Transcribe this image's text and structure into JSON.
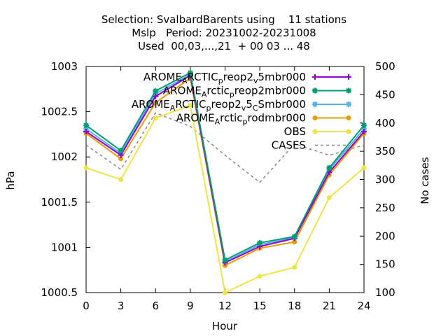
{
  "chart_data": {
    "type": "line",
    "title_lines": [
      "Selection: SvalbardBarents using    11 stations",
      "Mslp   Period: 20231002-20231008",
      "Used  00,03,...,21  + 00 03 ... 48"
    ],
    "xlabel": "Hour",
    "ylabel": "hPa",
    "y2label": "No cases",
    "x": [
      0,
      3,
      6,
      9,
      12,
      15,
      18,
      21,
      24
    ],
    "xlim": [
      0,
      24
    ],
    "ylim": [
      1000.5,
      1003
    ],
    "y2lim": [
      100,
      500
    ],
    "x_ticks": [
      "0",
      "3",
      "6",
      "9",
      "12",
      "15",
      "18",
      "21",
      "24"
    ],
    "y_ticks": [
      1000.5,
      1001,
      1001.5,
      1002,
      1002.5,
      1003
    ],
    "y_tick_labels": [
      "1000.5",
      "1001",
      "1001.5",
      "1002",
      "1002.5",
      "1003"
    ],
    "y2_ticks": [
      100,
      150,
      200,
      250,
      300,
      350,
      400,
      450,
      500
    ],
    "y2_tick_labels": [
      "100",
      "150",
      "200",
      "250",
      "300",
      "350",
      "400",
      "450",
      "500"
    ],
    "grid": false,
    "legend_placement": "top-right",
    "series": [
      {
        "label_parts": [
          [
            "AROME",
            ""
          ],
          [
            "A",
            "sub"
          ],
          [
            "RCTIC",
            ""
          ],
          [
            "p",
            "sub"
          ],
          [
            "reop2",
            ""
          ],
          [
            "v",
            "sub"
          ],
          [
            "5mbr000",
            ""
          ]
        ],
        "color": "#9400d3",
        "marker": "plus",
        "values": [
          1002.28,
          1002.02,
          1002.67,
          1002.9,
          1000.83,
          1001.01,
          1001.1,
          1001.83,
          1002.28
        ]
      },
      {
        "label_parts": [
          [
            "AROME",
            ""
          ],
          [
            "A",
            "sub"
          ],
          [
            "rctic",
            ""
          ],
          [
            "p",
            "sub"
          ],
          [
            "reop2mbr000",
            ""
          ]
        ],
        "color": "#009e73",
        "marker": "star",
        "values": [
          1002.35,
          1002.07,
          1002.73,
          1002.93,
          1000.86,
          1001.05,
          1001.12,
          1001.88,
          1002.35
        ]
      },
      {
        "label_parts": [
          [
            "AROME",
            ""
          ],
          [
            "A",
            "sub"
          ],
          [
            "RCTIC",
            ""
          ],
          [
            "p",
            "sub"
          ],
          [
            "reop2",
            ""
          ],
          [
            "v",
            "sub"
          ],
          [
            "5",
            ""
          ],
          [
            "C",
            "sub"
          ],
          [
            "Smbr000",
            ""
          ]
        ],
        "color": "#56b4e9",
        "marker": "star",
        "values": [
          1002.31,
          1002.04,
          1002.7,
          1002.91,
          1000.84,
          1001.03,
          1001.11,
          1001.86,
          1002.31
        ]
      },
      {
        "label_parts": [
          [
            "AROME",
            ""
          ],
          [
            "A",
            "sub"
          ],
          [
            "rctic",
            ""
          ],
          [
            "p",
            "sub"
          ],
          [
            "rodmbr000",
            ""
          ]
        ],
        "color": "#e69f00",
        "marker": "circle",
        "values": [
          1002.26,
          1001.98,
          1002.6,
          1002.87,
          1000.8,
          1000.99,
          1001.06,
          1001.8,
          1002.26
        ]
      },
      {
        "label_parts": [
          [
            "OBS",
            ""
          ]
        ],
        "color": "#f0e442",
        "marker": "circle",
        "values": [
          1001.88,
          1001.75,
          1002.43,
          1002.57,
          1000.5,
          1000.68,
          1000.78,
          1001.55,
          1001.88
        ]
      }
    ],
    "cases": {
      "label": "CASES",
      "color": "#888888",
      "style": "dashed",
      "axis": "right",
      "values": [
        361,
        318,
        418,
        394,
        343,
        295,
        363,
        343,
        361
      ]
    }
  }
}
